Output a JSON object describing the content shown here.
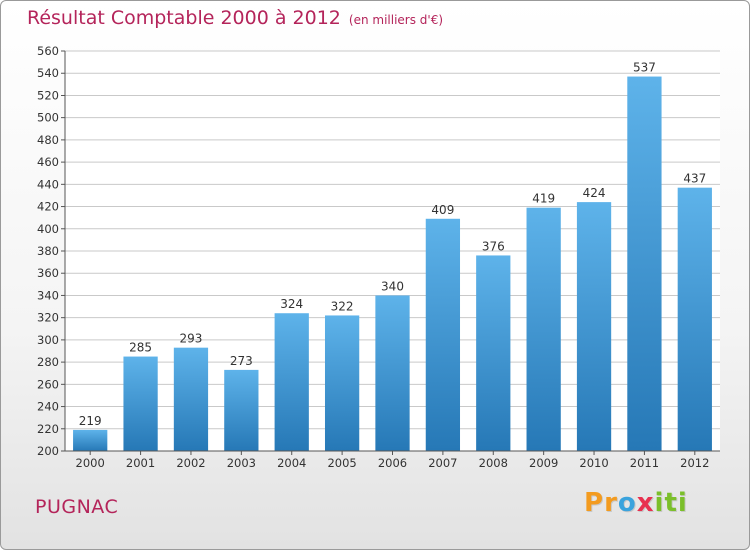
{
  "title": "Résultat Comptable 2000 à 2012",
  "subtitle": "(en milliers d'€)",
  "footer": {
    "town": "PUGNAC",
    "logo_letters": [
      "P",
      "r",
      "o",
      "x",
      "i",
      "t",
      "i"
    ],
    "logo_colors": [
      "#f39b1f",
      "#f39b1f",
      "#3aa3dd",
      "#e8304f",
      "#7bbf2a",
      "#7bbf2a",
      "#7bbf2a"
    ]
  },
  "colors": {
    "bar_top": "#5eb3ea",
    "bar_bottom": "#2678b6",
    "grid": "#c9c9c9",
    "axis_text": "#333333",
    "title": "#b4245a"
  },
  "chart_data": {
    "type": "bar",
    "categories": [
      "2000",
      "2001",
      "2002",
      "2003",
      "2004",
      "2005",
      "2006",
      "2007",
      "2008",
      "2009",
      "2010",
      "2011",
      "2012"
    ],
    "values": [
      219,
      285,
      293,
      273,
      324,
      322,
      340,
      409,
      376,
      419,
      424,
      537,
      437
    ],
    "ylim": [
      200,
      560
    ],
    "yticks": [
      200,
      220,
      240,
      260,
      280,
      300,
      320,
      340,
      360,
      380,
      400,
      420,
      440,
      460,
      480,
      500,
      520,
      540,
      560
    ],
    "grid": true,
    "legend": "none"
  }
}
